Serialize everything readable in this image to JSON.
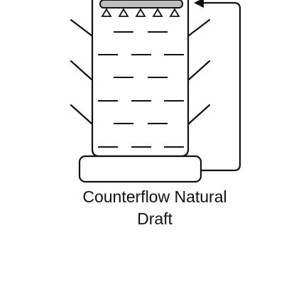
{
  "diagram": {
    "caption_lines": [
      "Counterflow Natural",
      "Draft"
    ],
    "colors": {
      "stroke": "#111111",
      "spray_header": "#bdbdbd",
      "background": "#ffffff"
    },
    "icons": {
      "nozzle": "triangle-nozzle-icon",
      "arrow": "arrowhead-icon"
    }
  }
}
